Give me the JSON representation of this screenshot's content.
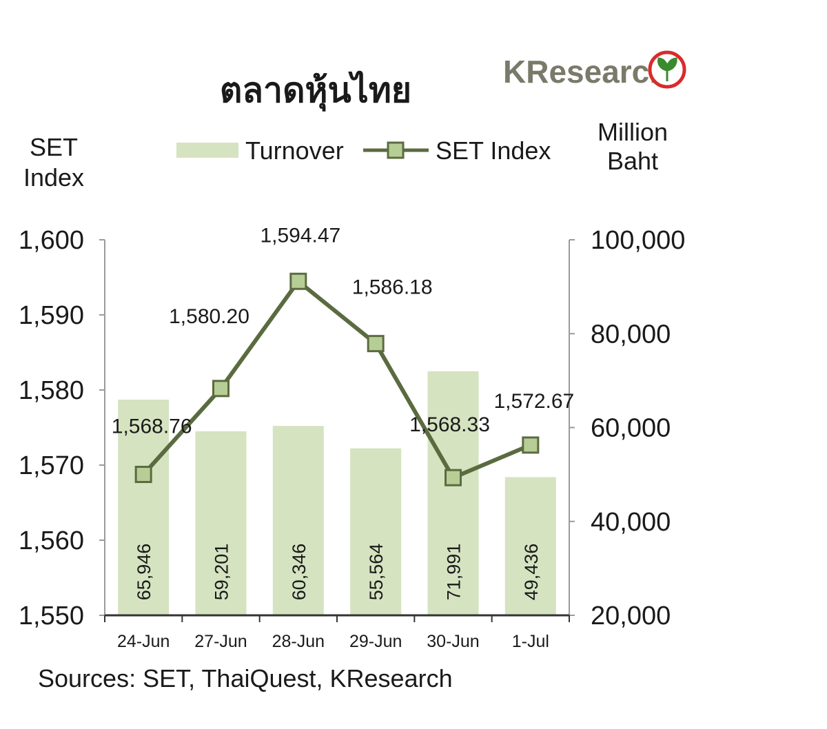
{
  "title": "ตลาดหุ้นไทย",
  "logo": {
    "text": "KResearch",
    "color": "#7a7a6a",
    "mark_color": "#d92b2b",
    "leaf_color": "#3a8a2e"
  },
  "left_axis_title": [
    "SET",
    "Index"
  ],
  "right_axis_title": [
    "Million",
    "Baht"
  ],
  "source": "Sources: SET, ThaiQuest, KResearch",
  "colors": {
    "bar": "#d5e3c0",
    "line": "#5b6b40",
    "marker_fill": "#b7cd96",
    "axis": "#9a9a9a"
  },
  "chart_data": {
    "type": "bar",
    "categories": [
      "24-Jun",
      "27-Jun",
      "28-Jun",
      "29-Jun",
      "30-Jun",
      "1-Jul"
    ],
    "series": [
      {
        "name": "Turnover",
        "type": "bar",
        "axis": "right",
        "values": [
          65946,
          59201,
          60346,
          55564,
          71991,
          49436
        ],
        "labels": [
          "65,946",
          "59,201",
          "60,346",
          "55,564",
          "71,991",
          "49,436"
        ]
      },
      {
        "name": "SET Index",
        "type": "line",
        "axis": "left",
        "values": [
          1568.76,
          1580.2,
          1594.47,
          1586.18,
          1568.33,
          1572.67
        ],
        "labels": [
          "1,568.76",
          "1,580.20",
          "1,594.47",
          "1,586.18",
          "1,568.33",
          "1,572.67"
        ]
      }
    ],
    "y_left": {
      "ylim": [
        1550,
        1600
      ],
      "ticks": [
        "1,550",
        "1,560",
        "1,570",
        "1,580",
        "1,590",
        "1,600"
      ]
    },
    "y_right": {
      "ylim": [
        20000,
        100000
      ],
      "ticks": [
        "20,000",
        "40,000",
        "60,000",
        "80,000",
        "100,000"
      ]
    },
    "legend": "top-center",
    "grid": false
  }
}
